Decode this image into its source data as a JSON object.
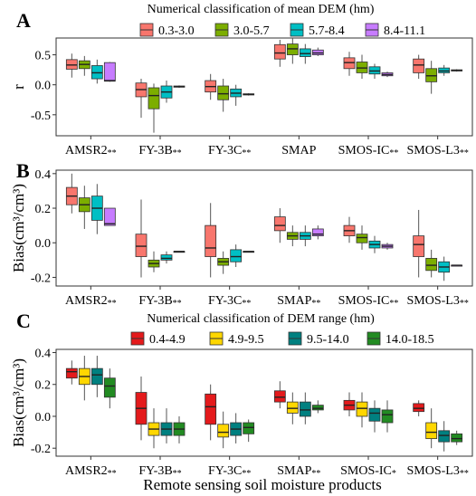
{
  "figure": {
    "x_axis_title": "Remote sensing soil moisture products",
    "legend_titles": {
      "dem_mean": "Numerical classification of mean DEM (hm)",
      "dem_range": "Numerical classification of DEM range (hm)"
    }
  },
  "chart_data": [
    {
      "type": "box",
      "panel": "A",
      "ylabel": "r",
      "ylim": [
        -0.85,
        0.78
      ],
      "yticks": [
        -0.5,
        0.0,
        0.5
      ],
      "categories": [
        "AMSR2**",
        "FY-3B**",
        "FY-3C**",
        "SMAP",
        "SMOS-IC**",
        "SMOS-L3**"
      ],
      "legend": {
        "title": "Numerical classification of mean DEM (hm)",
        "placement": "top"
      },
      "series": [
        {
          "name": "0.3-3.0",
          "color": "#F8766D",
          "boxes": [
            [
              0.12,
              0.26,
              0.33,
              0.42,
              0.52
            ],
            [
              -0.55,
              -0.2,
              -0.08,
              0.03,
              0.1
            ],
            [
              -0.25,
              -0.12,
              -0.03,
              0.07,
              0.18
            ],
            [
              0.3,
              0.43,
              0.53,
              0.67,
              0.75
            ],
            [
              0.15,
              0.27,
              0.37,
              0.45,
              0.55
            ],
            [
              0.1,
              0.2,
              0.33,
              0.43,
              0.5
            ]
          ]
        },
        {
          "name": "3.0-5.7",
          "color": "#7CAE00",
          "boxes": [
            [
              0.15,
              0.27,
              0.34,
              0.4,
              0.48
            ],
            [
              -0.8,
              -0.4,
              -0.18,
              -0.05,
              0.02
            ],
            [
              -0.45,
              -0.25,
              -0.15,
              -0.02,
              0.1
            ],
            [
              0.35,
              0.5,
              0.6,
              0.68,
              0.78
            ],
            [
              0.1,
              0.2,
              0.28,
              0.38,
              0.5
            ],
            [
              -0.15,
              0.05,
              0.15,
              0.27,
              0.4
            ]
          ]
        },
        {
          "name": "5.7-8.4",
          "color": "#00BFC4",
          "boxes": [
            [
              0.02,
              0.1,
              0.2,
              0.32,
              0.42
            ],
            [
              -0.3,
              -0.22,
              -0.12,
              -0.02,
              0.07
            ],
            [
              -0.35,
              -0.2,
              -0.14,
              -0.07,
              0.0
            ],
            [
              0.35,
              0.47,
              0.52,
              0.6,
              0.68
            ],
            [
              0.1,
              0.18,
              0.23,
              0.3,
              0.35
            ],
            [
              0.15,
              0.2,
              0.23,
              0.28,
              0.33
            ]
          ]
        },
        {
          "name": "8.4-11.1",
          "color": "#C77CFF",
          "boxes": [
            [
              0.05,
              0.06,
              0.07,
              0.37,
              0.38
            ],
            [
              -0.05,
              -0.04,
              -0.03,
              -0.02,
              -0.01
            ],
            [
              -0.18,
              -0.17,
              -0.16,
              -0.15,
              -0.14
            ],
            [
              0.48,
              0.5,
              0.53,
              0.58,
              0.62
            ],
            [
              0.13,
              0.15,
              0.17,
              0.2,
              0.22
            ],
            [
              0.22,
              0.23,
              0.24,
              0.25,
              0.26
            ]
          ]
        }
      ]
    },
    {
      "type": "box",
      "panel": "B",
      "ylabel": "Bias(cm³/cm³)",
      "ylim": [
        -0.25,
        0.42
      ],
      "yticks": [
        -0.2,
        0.0,
        0.2,
        0.4
      ],
      "categories": [
        "AMSR2**",
        "FY-3B**",
        "FY-3C**",
        "SMAP**",
        "SMOS-IC**",
        "SMOS-L3**"
      ],
      "series": [
        {
          "name": "0.3-3.0",
          "color": "#F8766D",
          "boxes": [
            [
              0.17,
              0.22,
              0.27,
              0.32,
              0.4
            ],
            [
              -0.2,
              -0.08,
              -0.02,
              0.05,
              0.25
            ],
            [
              -0.2,
              -0.08,
              -0.03,
              0.1,
              0.23
            ],
            [
              0.0,
              0.07,
              0.1,
              0.15,
              0.2
            ],
            [
              0.0,
              0.04,
              0.07,
              0.1,
              0.15
            ],
            [
              -0.2,
              -0.08,
              -0.01,
              0.04,
              0.19
            ]
          ]
        },
        {
          "name": "3.0-5.7",
          "color": "#7CAE00",
          "boxes": [
            [
              0.08,
              0.18,
              0.22,
              0.26,
              0.33
            ],
            [
              -0.17,
              -0.14,
              -0.12,
              -0.1,
              -0.05
            ],
            [
              -0.18,
              -0.13,
              -0.11,
              -0.09,
              -0.05
            ],
            [
              -0.02,
              0.02,
              0.04,
              0.06,
              0.1
            ],
            [
              -0.04,
              0.0,
              0.03,
              0.05,
              0.1
            ],
            [
              -0.2,
              -0.16,
              -0.13,
              -0.09,
              -0.04
            ]
          ]
        },
        {
          "name": "5.7-8.4",
          "color": "#00BFC4",
          "boxes": [
            [
              0.05,
              0.13,
              0.2,
              0.27,
              0.34
            ],
            [
              -0.12,
              -0.1,
              -0.09,
              -0.07,
              -0.05
            ],
            [
              -0.14,
              -0.11,
              -0.08,
              -0.04,
              -0.01
            ],
            [
              -0.02,
              0.02,
              0.04,
              0.06,
              0.1
            ],
            [
              -0.06,
              -0.03,
              -0.01,
              0.01,
              0.04
            ],
            [
              -0.22,
              -0.17,
              -0.14,
              -0.11,
              -0.08
            ]
          ]
        },
        {
          "name": "8.4-11.1",
          "color": "#C77CFF",
          "boxes": [
            [
              0.1,
              0.1,
              0.11,
              0.2,
              0.2
            ],
            [
              -0.05,
              -0.05,
              -0.05,
              -0.05,
              -0.05
            ],
            [
              -0.05,
              -0.05,
              -0.05,
              -0.05,
              -0.05
            ],
            [
              0.02,
              0.04,
              0.05,
              0.08,
              0.1
            ],
            [
              -0.04,
              -0.03,
              -0.02,
              -0.01,
              0.0
            ],
            [
              -0.13,
              -0.13,
              -0.13,
              -0.13,
              -0.13
            ]
          ]
        }
      ]
    },
    {
      "type": "box",
      "panel": "C",
      "ylabel": "Bias(cm³/cm³)",
      "xlabel": "Remote sensing soil moisture products",
      "ylim": [
        -0.25,
        0.42
      ],
      "yticks": [
        -0.2,
        0.0,
        0.2,
        0.4
      ],
      "categories": [
        "AMSR2**",
        "FY-3B**",
        "FY-3C**",
        "SMAP**",
        "SMOS-IC*",
        "SMOS-L3**"
      ],
      "legend": {
        "title": "Numerical classification of DEM range (hm)",
        "placement": "top"
      },
      "series": [
        {
          "name": "0.4-4.9",
          "color": "#E41A1C",
          "boxes": [
            [
              0.2,
              0.24,
              0.28,
              0.3,
              0.35
            ],
            [
              -0.15,
              -0.05,
              0.05,
              0.15,
              0.25
            ],
            [
              -0.15,
              -0.05,
              0.06,
              0.14,
              0.2
            ],
            [
              0.05,
              0.09,
              0.12,
              0.16,
              0.22
            ],
            [
              0.0,
              0.04,
              0.07,
              0.1,
              0.15
            ],
            [
              0.0,
              0.03,
              0.05,
              0.08,
              0.1
            ]
          ]
        },
        {
          "name": "4.9-9.5",
          "color": "#FFD700",
          "boxes": [
            [
              0.1,
              0.2,
              0.25,
              0.3,
              0.38
            ],
            [
              -0.2,
              -0.12,
              -0.08,
              -0.04,
              0.05
            ],
            [
              -0.2,
              -0.13,
              -0.1,
              -0.05,
              0.03
            ],
            [
              -0.05,
              0.02,
              0.05,
              0.09,
              0.15
            ],
            [
              -0.07,
              0.0,
              0.05,
              0.09,
              0.15
            ],
            [
              -0.2,
              -0.14,
              -0.1,
              -0.04,
              0.05
            ]
          ]
        },
        {
          "name": "9.5-14.0",
          "color": "#008080",
          "boxes": [
            [
              0.12,
              0.2,
              0.26,
              0.3,
              0.38
            ],
            [
              -0.17,
              -0.12,
              -0.08,
              -0.04,
              0.05
            ],
            [
              -0.17,
              -0.12,
              -0.08,
              -0.04,
              0.02
            ],
            [
              -0.05,
              0.0,
              0.04,
              0.09,
              0.15
            ],
            [
              -0.1,
              -0.03,
              0.02,
              0.05,
              0.1
            ],
            [
              -0.22,
              -0.16,
              -0.12,
              -0.09,
              -0.03
            ]
          ]
        },
        {
          "name": "14.0-18.5",
          "color": "#228B22",
          "boxes": [
            [
              0.05,
              0.12,
              0.19,
              0.24,
              0.3
            ],
            [
              -0.17,
              -0.12,
              -0.08,
              -0.04,
              0.0
            ],
            [
              -0.16,
              -0.11,
              -0.07,
              -0.04,
              -0.02
            ],
            [
              0.02,
              0.04,
              0.05,
              0.07,
              0.1
            ],
            [
              -0.1,
              -0.04,
              0.01,
              0.04,
              0.1
            ],
            [
              -0.18,
              -0.16,
              -0.14,
              -0.11,
              -0.09
            ]
          ]
        }
      ]
    }
  ]
}
